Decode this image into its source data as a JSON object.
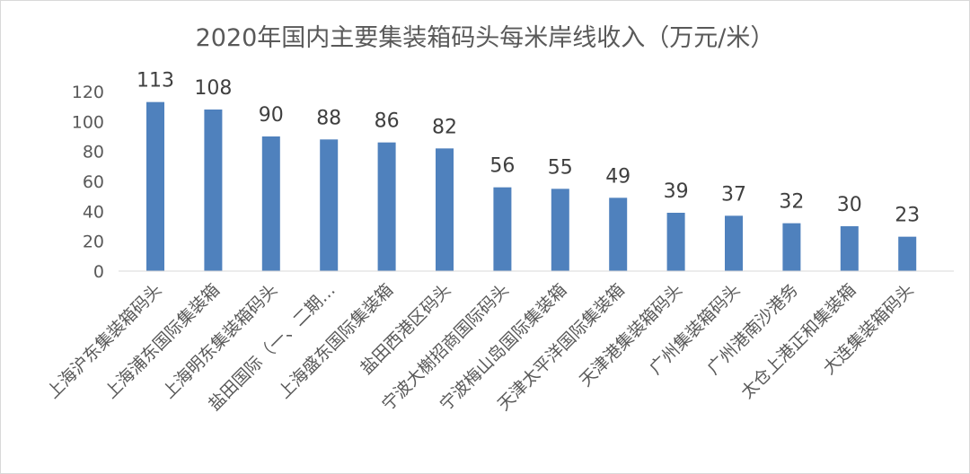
{
  "chart_data": {
    "type": "bar",
    "title": "2020年国内主要集装箱码头每米岸线收入（万元/米）",
    "categories": [
      "上海沪东集装箱码头",
      "上海浦东国际集装箱",
      "上海明东集装箱码头",
      "盐田国际（一、二期…",
      "上海盛东国际集装箱",
      "盐田西港区码头",
      "宁波大榭招商国际码头",
      "宁波梅山岛国际集装箱",
      "天津太平洋国际集装箱",
      "天津港集装箱码头",
      "广州集装箱码头",
      "广州港南沙港务",
      "太仓上港正和集装箱",
      "大连集装箱码头"
    ],
    "values": [
      113,
      108,
      90,
      88,
      86,
      82,
      56,
      55,
      49,
      39,
      37,
      32,
      30,
      23
    ],
    "ylim": [
      0,
      120
    ],
    "yticks": [
      0,
      20,
      40,
      60,
      80,
      100,
      120
    ],
    "bar_color": "#4f81bd",
    "grid": false,
    "legend": "none",
    "xlabel": "",
    "ylabel": ""
  }
}
